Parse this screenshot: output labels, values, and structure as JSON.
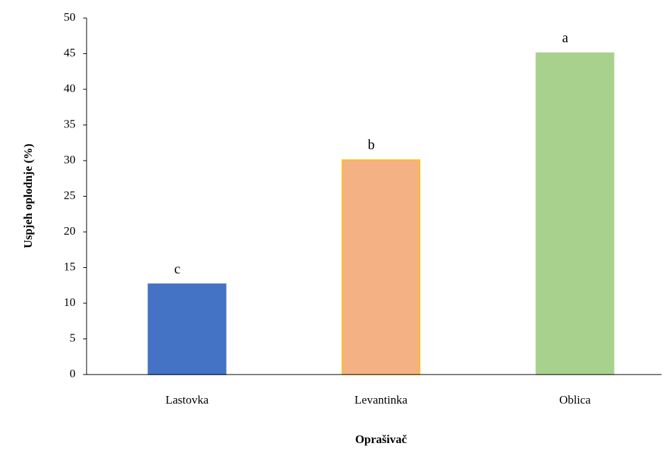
{
  "chart_data": {
    "type": "bar",
    "categories": [
      "Lastovka",
      "Levantinka",
      "Oblica"
    ],
    "values": [
      12.7,
      30.1,
      45.1
    ],
    "annotations": [
      "c",
      "b",
      "a"
    ],
    "colors": [
      "#4472c4",
      "#f4b183",
      "#a9d18e"
    ],
    "edgecolors": [
      "#4472c4",
      "#ffc000",
      "#a9d18e"
    ],
    "xlabel": "Oprašivač",
    "ylabel": "Uspjeh oplodnje (%)",
    "ylim": [
      0,
      50
    ],
    "yticks": [
      0,
      5,
      10,
      15,
      20,
      25,
      30,
      35,
      40,
      45,
      50
    ],
    "grid": false
  }
}
